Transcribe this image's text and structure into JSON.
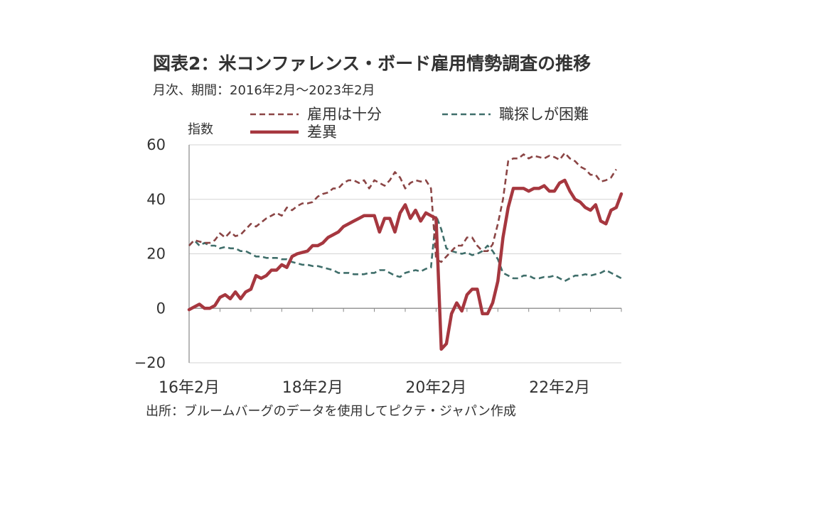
{
  "colors": {
    "employment": "#8b4545",
    "difficulty": "#3f6e6a",
    "gap": "#a6373f",
    "axis": "#888888",
    "grid": "#d3d3d3",
    "text": "#333333"
  },
  "chart_data": {
    "type": "line",
    "title": "図表2：米コンファレンス・ボード雇用情勢調査の推移",
    "subtitle": "月次、期間：2016年2月～2023年2月",
    "ylabel": "指数",
    "ylim": [
      -20,
      60
    ],
    "yticks": [
      60,
      40,
      20,
      0,
      -20
    ],
    "xticks": [
      {
        "label": "16年2月",
        "x": 0
      },
      {
        "label": "18年2月",
        "x": 24
      },
      {
        "label": "20年2月",
        "x": 48
      },
      {
        "label": "22年2月",
        "x": 72
      }
    ],
    "xlim": [
      0,
      84
    ],
    "grid": true,
    "legend_position": "top",
    "source": "出所：ブルームバーグのデータを使用してピクテ・ジャパン作成",
    "series": [
      {
        "name": "雇用は十分",
        "style": "dashed",
        "color": "#8b4545",
        "values": [
          23,
          25,
          24.5,
          24,
          24,
          25,
          27.5,
          26,
          28,
          26.5,
          27,
          29,
          31,
          30,
          31.5,
          33,
          34,
          35,
          34,
          37,
          36,
          37.5,
          38.5,
          38.5,
          39,
          41,
          42,
          42.5,
          44,
          44,
          46,
          47,
          47,
          46,
          47,
          44,
          47,
          46,
          45,
          47,
          50,
          48,
          44,
          46,
          47,
          46.5,
          47,
          44,
          18,
          17,
          19,
          21,
          23,
          23,
          26,
          26,
          23,
          21,
          21,
          23.5,
          31,
          40,
          54,
          55,
          55,
          56.5,
          55,
          56,
          55.5,
          55,
          56,
          55.5,
          54.5,
          57,
          55,
          54,
          52,
          51,
          49,
          49,
          46.5,
          47,
          48,
          51
        ]
      },
      {
        "name": "職探しが困難",
        "style": "dashed",
        "color": "#3f6e6a",
        "values": [
          23,
          25,
          23,
          24,
          23,
          23,
          22,
          22.5,
          22,
          22,
          21,
          21,
          20,
          19,
          19,
          18.5,
          18.5,
          18.5,
          18,
          18,
          17,
          16.5,
          16,
          16,
          15.5,
          15.5,
          15,
          14.5,
          14,
          13,
          13,
          13,
          12.5,
          12.5,
          12.5,
          13,
          13,
          14,
          14,
          13,
          12,
          11.5,
          13,
          13.5,
          14,
          13.5,
          14.5,
          15,
          34,
          29,
          22,
          21,
          20.5,
          20,
          20.5,
          19.5,
          20,
          21,
          23,
          21,
          18,
          13,
          12,
          11,
          11,
          12,
          12,
          11,
          11,
          11.5,
          11.5,
          12,
          11,
          10,
          11,
          12,
          12,
          12.5,
          12,
          12.5,
          13,
          14,
          13,
          12,
          11
        ]
      },
      {
        "name": "差異",
        "style": "solid",
        "color": "#a6373f",
        "values": [
          -0.5,
          0.5,
          1.5,
          0,
          0,
          1,
          4,
          5,
          3.5,
          6,
          3.5,
          6,
          7,
          12,
          11,
          12,
          14,
          14,
          16,
          15,
          19,
          20,
          20.5,
          21,
          23,
          23,
          24,
          26,
          27,
          28,
          30,
          31,
          32,
          33,
          34,
          34,
          34,
          28,
          33,
          33,
          28,
          35,
          38,
          33,
          36,
          32,
          35,
          34,
          33,
          -15,
          -13,
          -2,
          2,
          -1,
          5,
          7,
          7,
          -2,
          -2,
          2,
          10,
          26,
          37,
          44,
          44,
          44,
          43,
          44,
          44,
          45,
          43,
          43,
          46,
          47,
          43,
          40,
          39,
          37,
          36,
          38,
          32,
          31,
          36,
          37,
          42
        ]
      }
    ]
  }
}
